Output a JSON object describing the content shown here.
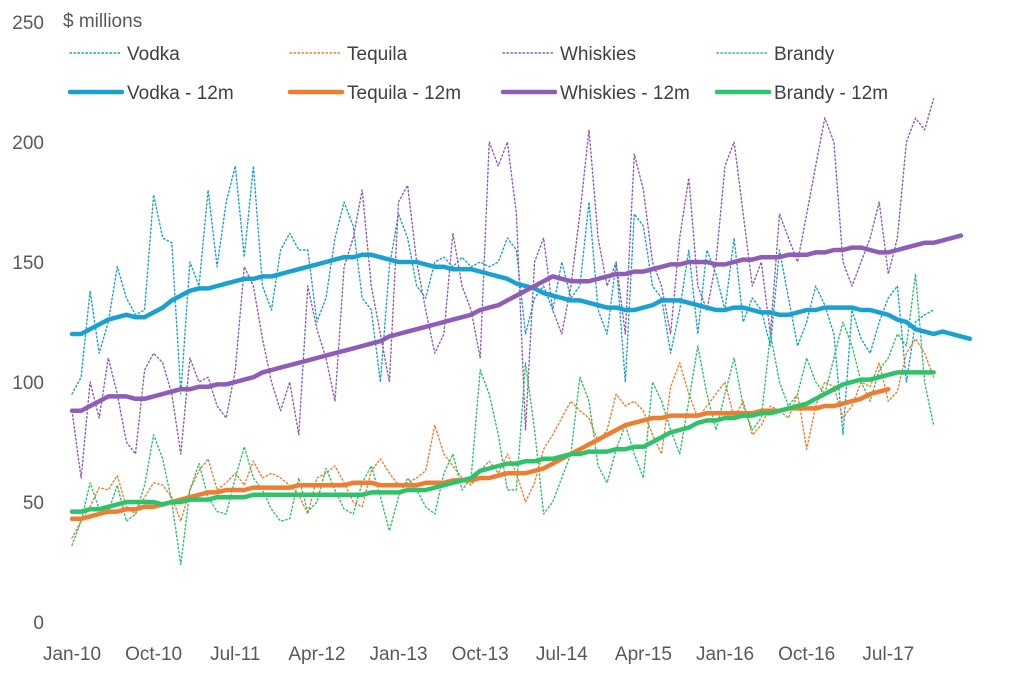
{
  "chart_data": {
    "type": "line",
    "title": "",
    "unit_label": "$ millions",
    "xlabel": "",
    "ylabel": "",
    "ylim": [
      0,
      250
    ],
    "yticks": [
      0,
      50,
      100,
      150,
      200,
      250
    ],
    "grid": false,
    "legend_position": "top",
    "x_tick_labels": [
      "Jan-10",
      "Oct-10",
      "Jul-11",
      "Apr-12",
      "Jan-13",
      "Oct-13",
      "Jul-14",
      "Apr-15",
      "Jan-16",
      "Oct-16",
      "Jul-17"
    ],
    "x_tick_month_index": [
      0,
      9,
      18,
      27,
      36,
      45,
      54,
      63,
      72,
      81,
      90
    ],
    "series": [
      {
        "name": "Vodka",
        "style": "dotted",
        "color": "#1ba1d1",
        "start_month_index": 0,
        "values": [
          95,
          102,
          138,
          112,
          125,
          148,
          135,
          128,
          130,
          178,
          160,
          158,
          95,
          150,
          140,
          180,
          148,
          175,
          190,
          152,
          190,
          140,
          130,
          155,
          162,
          155,
          155,
          125,
          135,
          160,
          175,
          165,
          135,
          130,
          100,
          148,
          170,
          160,
          140,
          135,
          150,
          152,
          148,
          152,
          148,
          150,
          148,
          150,
          160,
          155,
          120,
          135,
          140,
          130,
          150,
          135,
          140,
          175,
          130,
          120,
          150,
          100,
          170,
          165,
          140,
          135,
          112,
          130,
          155,
          120,
          155,
          145,
          130,
          160,
          125,
          135,
          130,
          115,
          155,
          135,
          115,
          125,
          140,
          132,
          120,
          78,
          130,
          118,
          112,
          125,
          135,
          140,
          100,
          125,
          128,
          130
        ]
      },
      {
        "name": "Tequila",
        "style": "dotted",
        "color": "#ee7d31",
        "start_month_index": 0,
        "values": [
          35,
          42,
          48,
          56,
          55,
          61,
          48,
          45,
          52,
          58,
          57,
          52,
          42,
          55,
          63,
          68,
          55,
          58,
          62,
          57,
          67,
          60,
          62,
          60,
          57,
          53,
          45,
          60,
          62,
          65,
          58,
          50,
          48,
          63,
          68,
          62,
          57,
          58,
          60,
          63,
          82,
          70,
          65,
          60,
          57,
          63,
          67,
          62,
          70,
          62,
          50,
          58,
          72,
          78,
          85,
          92,
          88,
          85,
          75,
          80,
          95,
          90,
          92,
          88,
          78,
          70,
          98,
          108,
          95,
          85,
          90,
          95,
          100,
          85,
          92,
          78,
          82,
          90,
          88,
          85,
          95,
          72,
          90,
          100,
          98,
          85,
          90,
          100,
          98,
          108,
          92,
          96,
          112,
          118,
          112,
          102
        ]
      },
      {
        "name": "Whiskies",
        "style": "dotted",
        "color": "#8e5db8",
        "start_month_index": 0,
        "values": [
          88,
          60,
          100,
          85,
          110,
          95,
          75,
          70,
          105,
          112,
          108,
          95,
          70,
          110,
          100,
          102,
          90,
          85,
          105,
          148,
          140,
          118,
          100,
          88,
          100,
          78,
          140,
          122,
          110,
          92,
          148,
          160,
          180,
          140,
          120,
          100,
          175,
          182,
          150,
          130,
          112,
          120,
          162,
          140,
          130,
          110,
          200,
          190,
          200,
          170,
          80,
          150,
          160,
          130,
          120,
          140,
          170,
          205,
          160,
          140,
          150,
          120,
          195,
          180,
          150,
          140,
          120,
          160,
          185,
          140,
          130,
          150,
          190,
          200,
          170,
          140,
          150,
          120,
          170,
          160,
          150,
          170,
          190,
          210,
          200,
          150,
          140,
          150,
          160,
          175,
          145,
          160,
          200,
          210,
          205,
          218
        ]
      },
      {
        "name": "Brandy",
        "style": "dotted",
        "color": "#2ec26a",
        "start_month_index": 0,
        "values": [
          32,
          42,
          58,
          47,
          46,
          57,
          42,
          45,
          57,
          78,
          68,
          50,
          24,
          55,
          66,
          52,
          46,
          45,
          60,
          73,
          60,
          55,
          47,
          42,
          43,
          60,
          46,
          50,
          64,
          55,
          47,
          45,
          58,
          65,
          52,
          38,
          52,
          60,
          55,
          48,
          45,
          62,
          70,
          55,
          60,
          105,
          95,
          78,
          55,
          55,
          108,
          80,
          45,
          50,
          60,
          70,
          102,
          92,
          65,
          58,
          72,
          82,
          70,
          60,
          100,
          92,
          80,
          70,
          92,
          115,
          95,
          80,
          95,
          110,
          90,
          80,
          85,
          120,
          100,
          90,
          95,
          110,
          100,
          95,
          110,
          125,
          115,
          100,
          92,
          105,
          110,
          120,
          115,
          145,
          100,
          82
        ]
      },
      {
        "name": "Vodka - 12m",
        "style": "solid",
        "color": "#1ba1d1",
        "start_month_index": 0,
        "values": [
          120,
          120,
          122,
          124,
          126,
          127,
          128,
          127,
          127,
          129,
          131,
          134,
          136,
          138,
          139,
          139,
          140,
          141,
          142,
          143,
          143,
          144,
          144,
          145,
          146,
          147,
          148,
          149,
          150,
          151,
          152,
          152,
          153,
          153,
          152,
          151,
          150,
          150,
          150,
          149,
          148,
          148,
          147,
          147,
          147,
          146,
          145,
          144,
          143,
          141,
          140,
          139,
          137,
          136,
          135,
          134,
          134,
          133,
          132,
          131,
          131,
          130,
          130,
          131,
          132,
          134,
          134,
          134,
          133,
          132,
          131,
          130,
          130,
          131,
          131,
          130,
          129,
          129,
          128,
          128,
          129,
          130,
          130,
          131,
          131,
          131,
          131,
          130,
          130,
          129,
          128,
          126,
          125,
          122,
          121,
          120,
          121,
          120,
          119,
          118
        ]
      },
      {
        "name": "Tequila - 12m",
        "style": "solid",
        "color": "#ee7d31",
        "start_month_index": 0,
        "values": [
          43,
          43,
          44,
          45,
          46,
          46,
          47,
          47,
          48,
          48,
          49,
          50,
          51,
          52,
          53,
          54,
          54,
          55,
          55,
          55,
          56,
          56,
          56,
          56,
          56,
          57,
          57,
          57,
          57,
          57,
          57,
          58,
          58,
          58,
          57,
          57,
          57,
          57,
          57,
          58,
          58,
          58,
          59,
          59,
          59,
          60,
          60,
          61,
          62,
          62,
          62,
          63,
          64,
          66,
          68,
          70,
          72,
          74,
          76,
          78,
          80,
          82,
          83,
          84,
          85,
          85,
          86,
          86,
          86,
          86,
          87,
          87,
          87,
          87,
          87,
          87,
          88,
          88,
          88,
          89,
          89,
          89,
          89,
          90,
          90,
          91,
          92,
          93,
          95,
          96,
          97
        ]
      },
      {
        "name": "Whiskies - 12m",
        "style": "solid",
        "color": "#8e5db8",
        "start_month_index": 0,
        "values": [
          88,
          88,
          90,
          92,
          94,
          94,
          94,
          93,
          93,
          94,
          95,
          96,
          97,
          97,
          98,
          98,
          99,
          99,
          100,
          101,
          102,
          104,
          105,
          106,
          107,
          108,
          109,
          110,
          111,
          112,
          113,
          114,
          115,
          116,
          117,
          119,
          120,
          121,
          122,
          123,
          124,
          125,
          126,
          127,
          128,
          130,
          131,
          132,
          134,
          136,
          138,
          140,
          142,
          144,
          143,
          142,
          142,
          142,
          143,
          144,
          145,
          145,
          146,
          146,
          147,
          148,
          149,
          149,
          150,
          150,
          150,
          149,
          149,
          150,
          151,
          151,
          152,
          152,
          152,
          153,
          153,
          153,
          154,
          154,
          155,
          155,
          156,
          156,
          155,
          154,
          154,
          155,
          156,
          157,
          158,
          158,
          159,
          160,
          161
        ]
      },
      {
        "name": "Brandy - 12m",
        "style": "solid",
        "color": "#2ec26a",
        "start_month_index": 0,
        "values": [
          46,
          46,
          47,
          47,
          48,
          49,
          50,
          50,
          50,
          50,
          49,
          50,
          50,
          51,
          51,
          51,
          52,
          52,
          52,
          52,
          53,
          53,
          53,
          53,
          53,
          53,
          53,
          53,
          53,
          53,
          53,
          53,
          53,
          54,
          54,
          54,
          54,
          55,
          55,
          55,
          56,
          57,
          58,
          59,
          60,
          63,
          64,
          65,
          66,
          66,
          67,
          67,
          68,
          68,
          69,
          70,
          70,
          71,
          71,
          71,
          72,
          72,
          73,
          73,
          75,
          77,
          79,
          80,
          81,
          83,
          84,
          84,
          85,
          85,
          86,
          86,
          87,
          87,
          88,
          89,
          90,
          91,
          93,
          95,
          97,
          99,
          100,
          101,
          101,
          102,
          103,
          104,
          104,
          104,
          104,
          104
        ]
      }
    ]
  }
}
